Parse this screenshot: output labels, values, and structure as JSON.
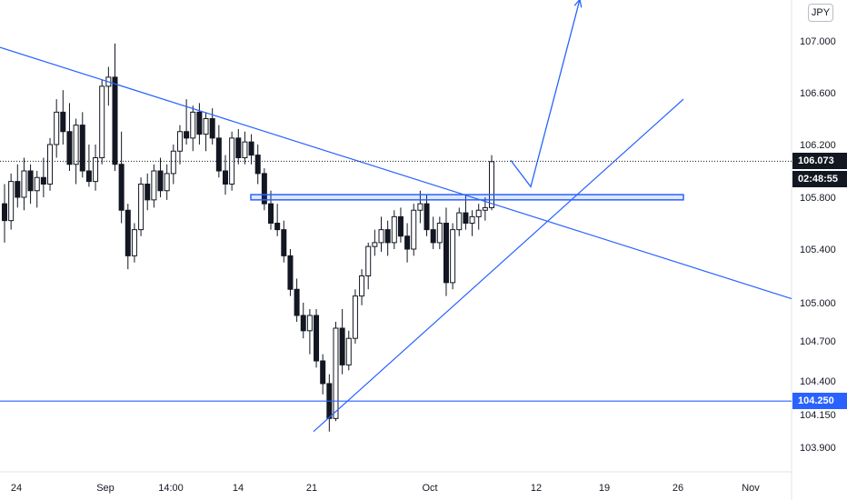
{
  "currency_label": "JPY",
  "current_price_label": "106.073",
  "countdown_label": "02:48:55",
  "level_label": "104.250",
  "colors": {
    "line": "#2962ff",
    "candle": "#131722",
    "badge_dark": "#131722",
    "badge_blue": "#2962ff",
    "axis_text": "#131722"
  },
  "chart_data": {
    "type": "candlestick",
    "symbol_currency": "JPY",
    "y_ticks": [
      "107.000",
      "106.600",
      "106.200",
      "105.800",
      "105.400",
      "105.000",
      "104.700",
      "104.400",
      "104.150",
      "103.900"
    ],
    "x_ticks": [
      "24",
      "Sep",
      "14:00",
      "14",
      "21",
      "Oct",
      "12",
      "19",
      "26",
      "Nov"
    ],
    "ylim": [
      103.8,
      107.2
    ],
    "last_price": 106.073,
    "countdown": "02:48:55",
    "annotations": [
      {
        "kind": "horizontal_line",
        "price": 104.25,
        "label": "104.250"
      },
      {
        "kind": "rectangle",
        "price_from": 105.78,
        "price_to": 105.82,
        "from": "Sep 15",
        "to": "Oct 26"
      },
      {
        "kind": "trend_line",
        "from": [
          "Aug 19",
          106.95
        ],
        "to": [
          "Nov 1",
          105.03
        ]
      },
      {
        "kind": "trend_line",
        "from": [
          "Sep 21",
          104.02
        ],
        "to": [
          "Oct 26",
          106.55
        ]
      },
      {
        "kind": "arrow",
        "points": [
          [
            "Oct 10",
            106.08
          ],
          [
            "Oct 12",
            105.88
          ],
          [
            "Oct 17",
            107.32
          ]
        ]
      },
      {
        "kind": "dotted_price_line",
        "price": 106.073
      }
    ],
    "candles": [
      [
        105.75,
        105.9,
        105.45,
        105.62
      ],
      [
        105.62,
        105.98,
        105.55,
        105.92
      ],
      [
        105.92,
        106.05,
        105.72,
        105.8
      ],
      [
        105.8,
        106.1,
        105.7,
        106.0
      ],
      [
        106.0,
        106.05,
        105.75,
        105.85
      ],
      [
        105.85,
        106.0,
        105.72,
        105.95
      ],
      [
        105.95,
        106.1,
        105.8,
        105.9
      ],
      [
        105.9,
        106.25,
        105.85,
        106.2
      ],
      [
        106.2,
        106.55,
        106.1,
        106.45
      ],
      [
        106.45,
        106.62,
        106.2,
        106.3
      ],
      [
        106.3,
        106.52,
        106.0,
        106.05
      ],
      [
        106.05,
        106.4,
        105.9,
        106.35
      ],
      [
        106.35,
        106.45,
        105.95,
        106.0
      ],
      [
        106.0,
        106.2,
        105.88,
        105.92
      ],
      [
        105.92,
        106.2,
        105.85,
        106.1
      ],
      [
        106.1,
        106.7,
        106.05,
        106.65
      ],
      [
        106.65,
        106.8,
        106.5,
        106.72
      ],
      [
        106.72,
        106.98,
        106.0,
        106.05
      ],
      [
        106.05,
        106.3,
        105.6,
        105.7
      ],
      [
        105.7,
        105.75,
        105.25,
        105.35
      ],
      [
        105.35,
        105.6,
        105.3,
        105.55
      ],
      [
        105.55,
        105.95,
        105.5,
        105.9
      ],
      [
        105.9,
        105.98,
        105.7,
        105.78
      ],
      [
        105.78,
        106.05,
        105.72,
        106.0
      ],
      [
        106.0,
        106.1,
        105.8,
        105.85
      ],
      [
        105.85,
        106.05,
        105.78,
        105.98
      ],
      [
        105.98,
        106.2,
        105.9,
        106.15
      ],
      [
        106.15,
        106.35,
        106.05,
        106.3
      ],
      [
        106.3,
        106.55,
        106.2,
        106.25
      ],
      [
        106.25,
        106.5,
        106.15,
        106.45
      ],
      [
        106.45,
        106.52,
        106.2,
        106.28
      ],
      [
        106.28,
        106.45,
        106.15,
        106.4
      ],
      [
        106.4,
        106.48,
        106.2,
        106.25
      ],
      [
        106.25,
        106.35,
        105.95,
        106.0
      ],
      [
        106.0,
        106.12,
        105.82,
        105.9
      ],
      [
        105.9,
        106.3,
        105.85,
        106.25
      ],
      [
        106.25,
        106.32,
        106.05,
        106.1
      ],
      [
        106.1,
        106.3,
        106.05,
        106.22
      ],
      [
        106.22,
        106.28,
        106.05,
        106.12
      ],
      [
        106.12,
        106.2,
        105.9,
        105.98
      ],
      [
        105.98,
        106.02,
        105.7,
        105.75
      ],
      [
        105.75,
        105.85,
        105.55,
        105.6
      ],
      [
        105.6,
        105.75,
        105.5,
        105.55
      ],
      [
        105.55,
        105.62,
        105.3,
        105.35
      ],
      [
        105.35,
        105.4,
        105.05,
        105.1
      ],
      [
        105.1,
        105.18,
        104.85,
        104.9
      ],
      [
        104.9,
        105.0,
        104.72,
        104.78
      ],
      [
        104.78,
        104.95,
        104.6,
        104.9
      ],
      [
        104.9,
        104.95,
        104.5,
        104.55
      ],
      [
        104.55,
        104.6,
        104.3,
        104.38
      ],
      [
        104.38,
        104.45,
        104.02,
        104.12
      ],
      [
        104.12,
        104.85,
        104.1,
        104.8
      ],
      [
        104.8,
        104.95,
        104.45,
        104.52
      ],
      [
        104.52,
        104.78,
        104.48,
        104.72
      ],
      [
        104.72,
        105.1,
        104.68,
        105.05
      ],
      [
        105.05,
        105.25,
        104.98,
        105.2
      ],
      [
        105.2,
        105.45,
        105.1,
        105.42
      ],
      [
        105.42,
        105.55,
        105.35,
        105.45
      ],
      [
        105.45,
        105.65,
        105.38,
        105.55
      ],
      [
        105.55,
        105.62,
        105.35,
        105.45
      ],
      [
        105.45,
        105.7,
        105.4,
        105.65
      ],
      [
        105.65,
        105.72,
        105.45,
        105.5
      ],
      [
        105.5,
        105.6,
        105.3,
        105.4
      ],
      [
        105.4,
        105.75,
        105.35,
        105.7
      ],
      [
        105.7,
        105.85,
        105.6,
        105.75
      ],
      [
        105.75,
        105.82,
        105.5,
        105.55
      ],
      [
        105.55,
        105.65,
        105.4,
        105.45
      ],
      [
        105.45,
        105.65,
        105.4,
        105.6
      ],
      [
        105.6,
        105.72,
        105.05,
        105.15
      ],
      [
        105.15,
        105.6,
        105.1,
        105.55
      ],
      [
        105.55,
        105.72,
        105.5,
        105.68
      ],
      [
        105.68,
        105.82,
        105.55,
        105.6
      ],
      [
        105.6,
        105.7,
        105.5,
        105.65
      ],
      [
        105.65,
        105.75,
        105.55,
        105.7
      ],
      [
        105.7,
        105.8,
        105.62,
        105.72
      ],
      [
        105.72,
        106.12,
        105.7,
        106.07
      ]
    ]
  }
}
